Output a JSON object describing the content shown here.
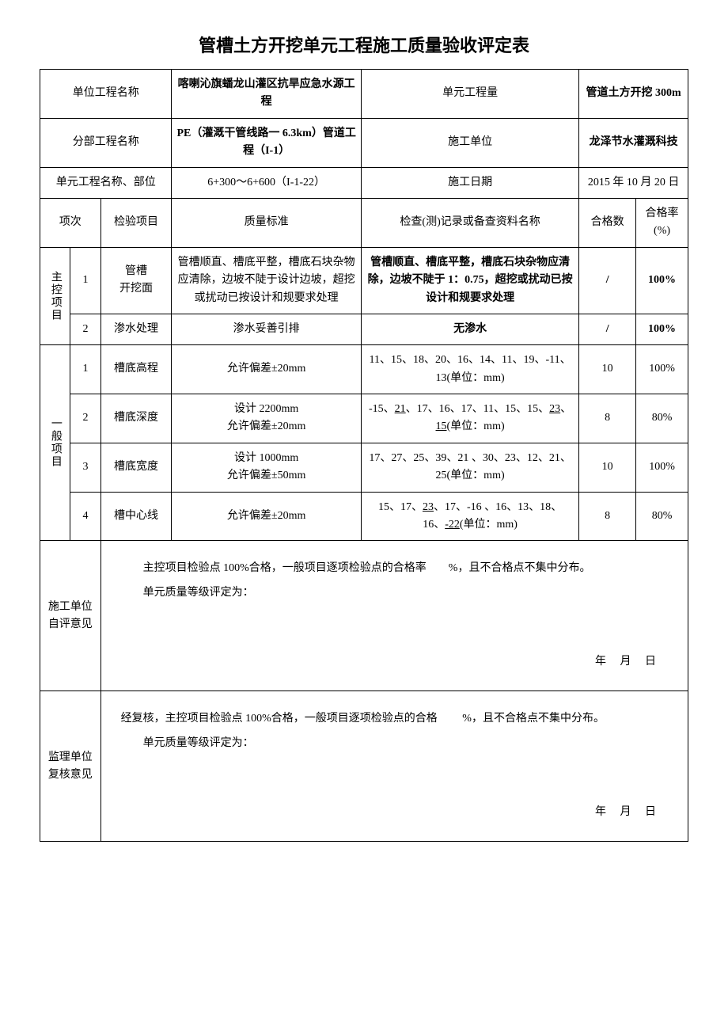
{
  "title": "管槽土方开挖单元工程施工质量验收评定表",
  "header": {
    "labels": {
      "unit_proj": "单位工程名称",
      "unit_qty": "单元工程量",
      "sub_proj": "分部工程名称",
      "contractor": "施工单位",
      "unit_name": "单元工程名称、部位",
      "date": "施工日期"
    },
    "values": {
      "unit_proj": "喀喇沁旗蟠龙山灌区抗旱应急水源工程",
      "unit_qty": "管道土方开挖 300m",
      "sub_proj": "PE（灌溉干管线路一 6.3km）管道工程（I-1）",
      "contractor": "龙泽节水灌溉科技",
      "unit_name": "6+300～6+600（I-1-22）",
      "date": "2015 年 10 月 20 日"
    }
  },
  "columns": {
    "seq": "项次",
    "item": "检验项目",
    "std": "质量标准",
    "record": "检查(测)记录或备查资料名称",
    "pass_count": "合格数",
    "pass_rate": "合格率(%)"
  },
  "categories": {
    "main": "主控项目",
    "general": "一般项目"
  },
  "main_rows": [
    {
      "idx": "1",
      "item_l1": "管槽",
      "item_l2": "开挖面",
      "std": "管槽顺直、槽底平整，槽底石块杂物应清除，边坡不陡于设计边坡，超挖或扰动已按设计和规要求处理",
      "record": "管槽顺直、槽底平整，槽底石块杂物应清除，边坡不陡于 1：0.75，超挖或扰动已按设计和规要求处理",
      "pass_count": "/",
      "pass_rate": "100%"
    },
    {
      "idx": "2",
      "item": "渗水处理",
      "std": "渗水妥善引排",
      "record": "无渗水",
      "pass_count": "/",
      "pass_rate": "100%"
    }
  ],
  "general_rows": [
    {
      "idx": "1",
      "item": "槽底高程",
      "std": "允许偏差±20mm",
      "record": "11、15、18、20、16、14、11、19、-11、13(单位：mm)",
      "pass_count": "10",
      "pass_rate": "100%"
    },
    {
      "idx": "2",
      "item": "槽底深度",
      "std_l1": "设计 2200mm",
      "std_l2": "允许偏差±20mm",
      "record_pre": "-15、",
      "record_u1": "21",
      "record_mid1": "、17、16、17、11、15、15、",
      "record_u2": "23",
      "record_mid2": "、",
      "record_u3": "15",
      "record_post": "(单位：mm)",
      "pass_count": "8",
      "pass_rate": "80%"
    },
    {
      "idx": "3",
      "item": "槽底宽度",
      "std_l1": "设计 1000mm",
      "std_l2": "允许偏差±50mm",
      "record": "17、27、25、39、21 、30、23、12、21、25(单位：mm)",
      "pass_count": "10",
      "pass_rate": "100%"
    },
    {
      "idx": "4",
      "item": "槽中心线",
      "std": "允许偏差±20mm",
      "record_pre": "15、17、",
      "record_u1": "23",
      "record_mid1": "、17、-16 、16、13、18、16、",
      "record_u2": "-22",
      "record_post": "(单位：mm)",
      "pass_count": "8",
      "pass_rate": "80%"
    }
  ],
  "opinions": {
    "self": {
      "label": "施工单位自评意见",
      "line1": "主控项目检验点 100%合格，一般项目逐项检验点的合格率　　%，且不合格点不集中分布。",
      "line2": "单元质量等级评定为：",
      "date": "年　 月　 日"
    },
    "review": {
      "label": "监理单位复核意见",
      "line1": "经复核，主控项目检验点 100%合格，一般项目逐项检验点的合格　　 %，且不合格点不集中分布。",
      "line2": "单元质量等级评定为：",
      "date": "年　 月　 日"
    }
  }
}
